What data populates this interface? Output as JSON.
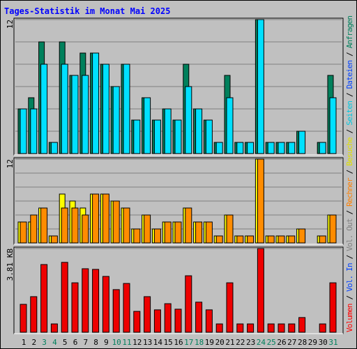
{
  "title": "Tages-Statistik im Monat Mai 2025",
  "categories": [
    "1",
    "2",
    "3",
    "4",
    "5",
    "6",
    "7",
    "8",
    "9",
    "10",
    "11",
    "12",
    "13",
    "14",
    "15",
    "16",
    "17",
    "18",
    "19",
    "20",
    "21",
    "22",
    "23",
    "24",
    "25",
    "26",
    "27",
    "28",
    "29",
    "30",
    "31"
  ],
  "weekends": [
    3,
    4,
    10,
    11,
    17,
    18,
    24,
    25,
    31
  ],
  "weekend_color": "#00805c",
  "legend_separator": " / ",
  "legend": [
    {
      "name": "Volumen",
      "color": "#ff0000"
    },
    {
      "name": "Vol. In",
      "color": "#0040ff"
    },
    {
      "name": "Vol. Out",
      "color": "#808080"
    },
    {
      "name": "Rechner",
      "color": "#ff8000"
    },
    {
      "name": "Besuche",
      "color": "#e0e000"
    },
    {
      "name": "Seiten",
      "color": "#00c8e0"
    },
    {
      "name": "Dateien",
      "color": "#0040ff"
    },
    {
      "name": "Anfragen",
      "color": "#00805c"
    }
  ],
  "chart_data": [
    {
      "type": "bar",
      "ylim": [
        0,
        12
      ],
      "yticks": [
        12
      ],
      "grid": [
        2,
        4,
        6,
        8,
        10
      ],
      "series": [
        {
          "color": "#00805c",
          "values": [
            4,
            5,
            10,
            1,
            10,
            7,
            9,
            9,
            8,
            6,
            8,
            3,
            5,
            3,
            4,
            3,
            8,
            4,
            3,
            1,
            7,
            1,
            1,
            12,
            1,
            1,
            1,
            2,
            0,
            1,
            7
          ]
        },
        {
          "color": "#00e0ff",
          "values": [
            4,
            4,
            8,
            1,
            8,
            7,
            7,
            9,
            8,
            6,
            8,
            3,
            5,
            3,
            4,
            3,
            6,
            4,
            3,
            1,
            5,
            1,
            1,
            12,
            1,
            1,
            1,
            2,
            0,
            1,
            5
          ]
        }
      ]
    },
    {
      "type": "bar",
      "ylim": [
        0,
        12
      ],
      "yticks": [
        12
      ],
      "grid": [
        2,
        4,
        6,
        8,
        10
      ],
      "series": [
        {
          "color": "#ffff00",
          "values": [
            3,
            3,
            5,
            1,
            7,
            6,
            5,
            7,
            7,
            6,
            5,
            2,
            4,
            2,
            3,
            3,
            5,
            3,
            3,
            1,
            4,
            1,
            1,
            12,
            1,
            1,
            1,
            2,
            0,
            1,
            4
          ]
        },
        {
          "color": "#ff8c00",
          "values": [
            3,
            4,
            5,
            1,
            5,
            5,
            4,
            7,
            7,
            6,
            5,
            2,
            4,
            2,
            3,
            3,
            5,
            3,
            3,
            1,
            4,
            1,
            1,
            12,
            1,
            1,
            1,
            2,
            0,
            1,
            4
          ]
        }
      ]
    },
    {
      "type": "bar",
      "ylim": [
        0,
        3.81
      ],
      "yticks": [
        {
          "value": 3.81,
          "label": "3.81 KB"
        }
      ],
      "grid": [],
      "series": [
        {
          "color": "#ee0000",
          "values": [
            1.27,
            1.62,
            3.08,
            0.38,
            3.18,
            2.25,
            2.89,
            2.86,
            2.54,
            1.94,
            2.22,
            0.95,
            1.62,
            1.02,
            1.3,
            1.05,
            2.57,
            1.37,
            1.02,
            0.38,
            2.25,
            0.38,
            0.38,
            3.81,
            0.38,
            0.38,
            0.38,
            0.67,
            0,
            0.38,
            2.25
          ]
        }
      ]
    }
  ]
}
